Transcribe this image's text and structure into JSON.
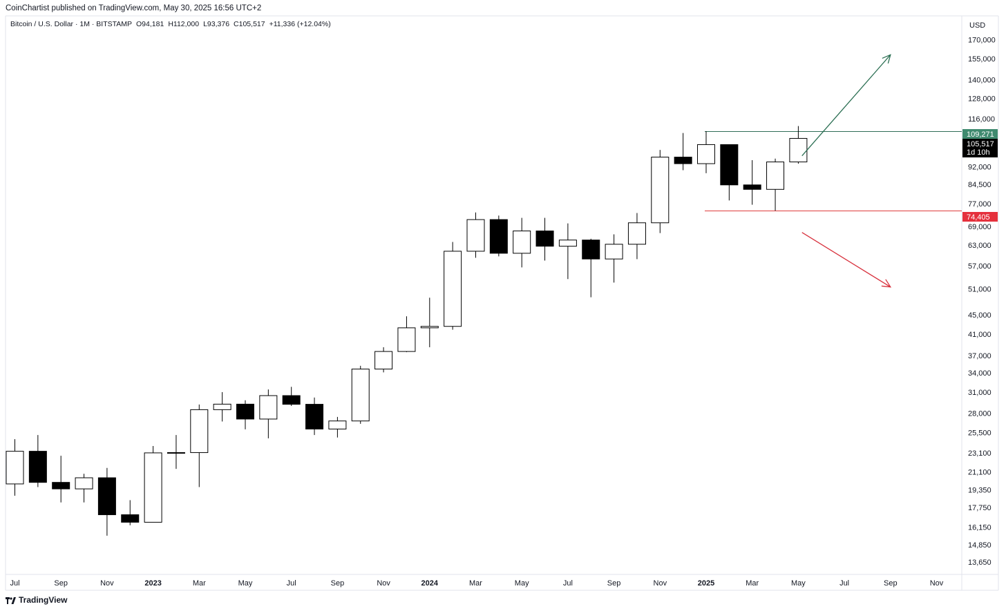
{
  "header": {
    "publisher": "CoinChartist published on TradingView.com, May 30, 2025 16:56 UTC+2",
    "legend": {
      "symbol": "Bitcoin / U.S. Dollar · 1M · BITSTAMP",
      "open": "O94,181",
      "high": "H112,000",
      "low": "L93,376",
      "close": "C105,517",
      "change": "+11,336 (+12.04%)"
    }
  },
  "footer": {
    "brand": "TradingView"
  },
  "price_axis": {
    "currency": "USD",
    "ticks": [
      "170,000",
      "155,000",
      "140,000",
      "128,000",
      "116,000",
      "92,000",
      "84,500",
      "77,000",
      "69,000",
      "63,000",
      "57,000",
      "51,000",
      "45,000",
      "41,000",
      "37,000",
      "34,000",
      "31,000",
      "28,000",
      "25,500",
      "23,100",
      "21,100",
      "19,350",
      "17,750",
      "16,150",
      "14,850",
      "13,650"
    ],
    "tags": {
      "resistance": "109,271",
      "last_price": "105,517",
      "countdown": "1d 10h",
      "support": "74,405"
    }
  },
  "time_axis": {
    "labels": [
      "Jul",
      "Sep",
      "Nov",
      "2023",
      "Mar",
      "May",
      "Jul",
      "Sep",
      "Nov",
      "2024",
      "Mar",
      "May",
      "Jul",
      "Sep",
      "Nov",
      "2025",
      "Mar",
      "May",
      "Jul",
      "Sep",
      "Nov"
    ],
    "bold": [
      "2023",
      "2024",
      "2025"
    ]
  },
  "colors": {
    "up_candle_fill": "#ffffff",
    "down_candle_fill": "#000000",
    "candle_border": "#000000",
    "resistance_line": "#2e6b56",
    "support_line": "#e03b3b",
    "resistance_tag": "#3f8a6f",
    "support_tag": "#e5313d",
    "last_price_tag": "#000000",
    "up_arrow": "#2a6e52",
    "down_arrow": "#d8313d"
  },
  "chart_data": {
    "type": "candlestick",
    "symbol": "Bitcoin / U.S. Dollar",
    "interval": "1M",
    "exchange": "BITSTAMP",
    "scale": "log",
    "ylim": [
      12900,
      190000
    ],
    "candles": [
      {
        "date": "2022-07",
        "open": 19900,
        "high": 24700,
        "low": 18800,
        "close": 23300
      },
      {
        "date": "2022-08",
        "open": 23300,
        "high": 25200,
        "low": 19600,
        "close": 20050
      },
      {
        "date": "2022-09",
        "open": 20050,
        "high": 22800,
        "low": 18200,
        "close": 19430
      },
      {
        "date": "2022-10",
        "open": 19430,
        "high": 20900,
        "low": 18200,
        "close": 20500
      },
      {
        "date": "2022-11",
        "open": 20500,
        "high": 21500,
        "low": 15500,
        "close": 17150
      },
      {
        "date": "2022-12",
        "open": 17150,
        "high": 18400,
        "low": 16300,
        "close": 16540
      },
      {
        "date": "2023-01",
        "open": 16540,
        "high": 23900,
        "low": 16540,
        "close": 23120
      },
      {
        "date": "2023-02",
        "open": 23120,
        "high": 25200,
        "low": 21400,
        "close": 23150
      },
      {
        "date": "2023-03",
        "open": 23150,
        "high": 29200,
        "low": 19600,
        "close": 28480
      },
      {
        "date": "2023-04",
        "open": 28480,
        "high": 31000,
        "low": 26900,
        "close": 29250
      },
      {
        "date": "2023-05",
        "open": 29250,
        "high": 29800,
        "low": 25900,
        "close": 27220
      },
      {
        "date": "2023-06",
        "open": 27220,
        "high": 31400,
        "low": 24800,
        "close": 30480
      },
      {
        "date": "2023-07",
        "open": 30480,
        "high": 31800,
        "low": 29000,
        "close": 29230
      },
      {
        "date": "2023-08",
        "open": 29230,
        "high": 30200,
        "low": 25200,
        "close": 25940
      },
      {
        "date": "2023-09",
        "open": 25940,
        "high": 27500,
        "low": 24900,
        "close": 26970
      },
      {
        "date": "2023-10",
        "open": 26970,
        "high": 35200,
        "low": 26600,
        "close": 34650
      },
      {
        "date": "2023-11",
        "open": 34650,
        "high": 38500,
        "low": 34100,
        "close": 37720
      },
      {
        "date": "2023-12",
        "open": 37720,
        "high": 44700,
        "low": 37600,
        "close": 42280
      },
      {
        "date": "2024-01",
        "open": 42280,
        "high": 48900,
        "low": 38500,
        "close": 42580
      },
      {
        "date": "2024-02",
        "open": 42580,
        "high": 64000,
        "low": 41900,
        "close": 61200
      },
      {
        "date": "2024-03",
        "open": 61200,
        "high": 73800,
        "low": 59300,
        "close": 71300
      },
      {
        "date": "2024-04",
        "open": 71300,
        "high": 72700,
        "low": 59700,
        "close": 60600
      },
      {
        "date": "2024-05",
        "open": 60600,
        "high": 71900,
        "low": 56600,
        "close": 67500
      },
      {
        "date": "2024-06",
        "open": 67500,
        "high": 71900,
        "low": 58500,
        "close": 62700
      },
      {
        "date": "2024-07",
        "open": 62700,
        "high": 70000,
        "low": 53500,
        "close": 64600
      },
      {
        "date": "2024-08",
        "open": 64600,
        "high": 65000,
        "low": 49000,
        "close": 58950
      },
      {
        "date": "2024-09",
        "open": 58950,
        "high": 66400,
        "low": 52600,
        "close": 63300
      },
      {
        "date": "2024-10",
        "open": 63300,
        "high": 73600,
        "low": 58900,
        "close": 70200
      },
      {
        "date": "2024-11",
        "open": 70200,
        "high": 99800,
        "low": 66800,
        "close": 96400
      },
      {
        "date": "2024-12",
        "open": 96400,
        "high": 108300,
        "low": 90500,
        "close": 93400
      },
      {
        "date": "2025-01",
        "open": 93400,
        "high": 109271,
        "low": 89200,
        "close": 102400
      },
      {
        "date": "2025-02",
        "open": 102400,
        "high": 102500,
        "low": 78200,
        "close": 84300
      },
      {
        "date": "2025-03",
        "open": 84300,
        "high": 95000,
        "low": 76600,
        "close": 82500
      },
      {
        "date": "2025-04",
        "open": 82500,
        "high": 95700,
        "low": 74405,
        "close": 94181
      },
      {
        "date": "2025-05",
        "open": 94181,
        "high": 112000,
        "low": 93376,
        "close": 105517
      }
    ],
    "levels": [
      {
        "price": 109271,
        "from": "2025-01",
        "color": "#2e6b56"
      },
      {
        "price": 74405,
        "from": "2025-01",
        "color": "#e03b3b"
      }
    ],
    "arrows": [
      {
        "direction": "up",
        "color": "#2a6e52",
        "from": {
          "date": "2025-06",
          "price": 97000
        },
        "to": {
          "date": "2025-09",
          "price": 158000
        }
      },
      {
        "direction": "down",
        "color": "#d8313d",
        "from": {
          "date": "2025-06",
          "price": 67000
        },
        "to": {
          "date": "2025-09",
          "price": 51500
        }
      }
    ],
    "grid": false
  }
}
